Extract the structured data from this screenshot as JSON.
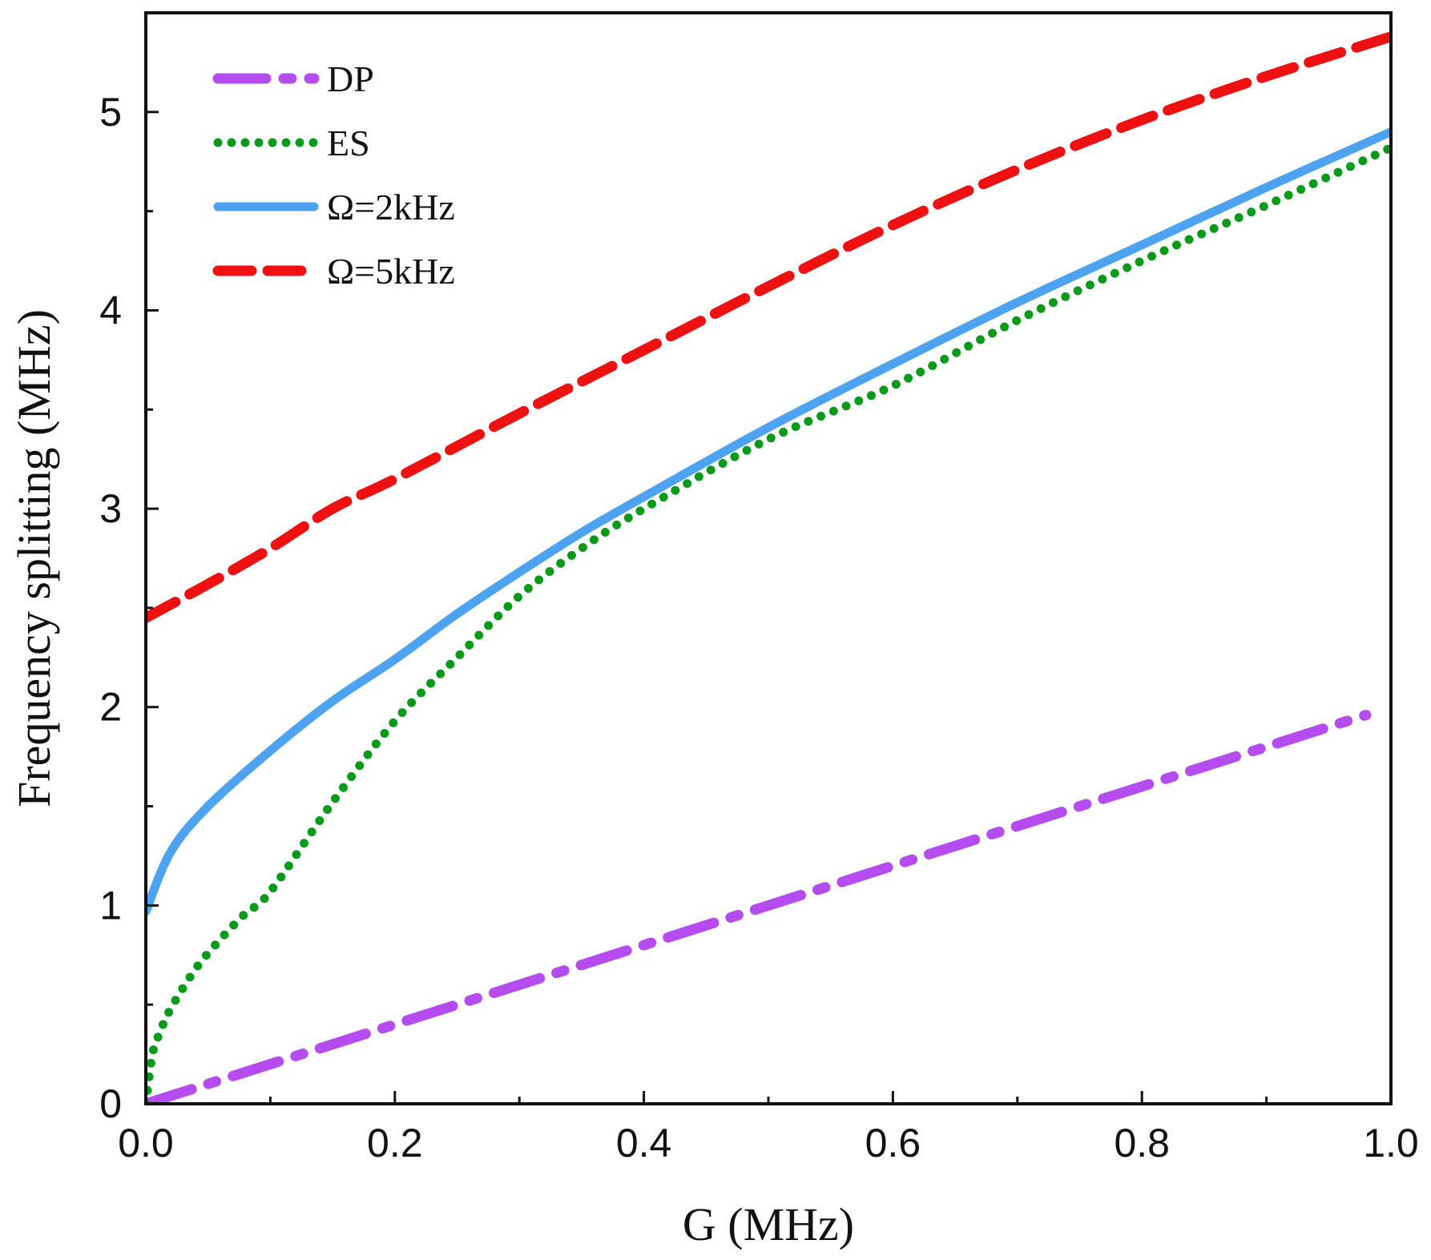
{
  "chart_data": {
    "type": "line",
    "title": "",
    "xlabel": "G (MHz)",
    "ylabel": "Frequency splitting (MHz)",
    "xlim": [
      0,
      1
    ],
    "ylim": [
      0,
      5.5
    ],
    "xticks": [
      0.0,
      0.2,
      0.4,
      0.6,
      0.8,
      1.0
    ],
    "xtick_labels": [
      "0.0",
      "0.2",
      "0.4",
      "0.6",
      "0.8",
      "1.0"
    ],
    "yticks": [
      0,
      1,
      2,
      3,
      4,
      5
    ],
    "ytick_labels": [
      "0",
      "1",
      "2",
      "3",
      "4",
      "5"
    ],
    "grid": false,
    "legend_position": "top-left",
    "series": [
      {
        "name": "DP",
        "color": "#b44cf0",
        "style": "dash-dot",
        "x": [
          0.0,
          0.1,
          0.2,
          0.3,
          0.4,
          0.5,
          0.6,
          0.7,
          0.8,
          0.9,
          0.98
        ],
        "y": [
          0.0,
          0.2,
          0.4,
          0.6,
          0.8,
          1.0,
          1.2,
          1.4,
          1.6,
          1.8,
          1.96
        ]
      },
      {
        "name": "ES",
        "color": "#0a9a1a",
        "style": "dotted",
        "x": [
          0.0,
          0.005,
          0.01,
          0.02,
          0.04,
          0.06,
          0.08,
          0.1,
          0.15,
          0.2,
          0.25,
          0.3,
          0.35,
          0.4,
          0.5,
          0.6,
          0.7,
          0.8,
          0.9,
          1.0
        ],
        "y": [
          0.0,
          0.24,
          0.34,
          0.48,
          0.68,
          0.83,
          0.96,
          1.07,
          1.52,
          1.93,
          2.25,
          2.56,
          2.8,
          3.0,
          3.35,
          3.62,
          3.95,
          4.25,
          4.53,
          4.82
        ]
      },
      {
        "name": "Ω=2kHz",
        "color": "#4da3f0",
        "style": "solid",
        "x": [
          0.0,
          0.02,
          0.05,
          0.1,
          0.15,
          0.2,
          0.25,
          0.3,
          0.35,
          0.4,
          0.5,
          0.6,
          0.7,
          0.8,
          0.9,
          1.0
        ],
        "y": [
          0.97,
          1.27,
          1.5,
          1.78,
          2.03,
          2.24,
          2.47,
          2.68,
          2.88,
          3.06,
          3.41,
          3.73,
          4.04,
          4.33,
          4.62,
          4.9
        ]
      },
      {
        "name": "Ω=5kHz",
        "color": "#ee1111",
        "style": "dashed",
        "x": [
          0.0,
          0.05,
          0.1,
          0.15,
          0.2,
          0.3,
          0.4,
          0.5,
          0.6,
          0.7,
          0.8,
          0.9,
          1.0
        ],
        "y": [
          2.45,
          2.62,
          2.8,
          3.0,
          3.15,
          3.48,
          3.8,
          4.12,
          4.43,
          4.71,
          4.96,
          5.18,
          5.38
        ]
      }
    ]
  }
}
